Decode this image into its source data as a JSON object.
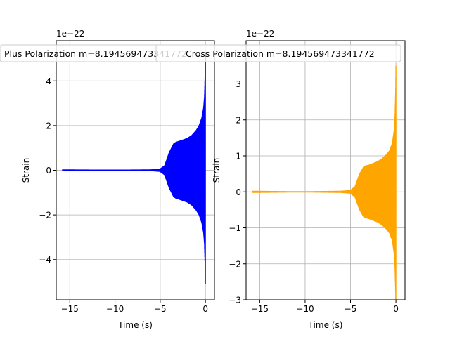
{
  "chart_data": [
    {
      "type": "line",
      "title": "Plus Polarization m=8.194569473341772",
      "xlabel": "Time (s)",
      "ylabel": "Strain",
      "offset_text": "1e−22",
      "xlim": [
        -16.5,
        1.0
      ],
      "ylim": [
        -5.8,
        5.8
      ],
      "xticks": [
        -15,
        -10,
        -5,
        0
      ],
      "xtick_labels": [
        "−15",
        "−10",
        "−5",
        "0"
      ],
      "yticks": [
        -4,
        -2,
        0,
        2,
        4
      ],
      "ytick_labels": [
        "−4",
        "−2",
        "0",
        "2",
        "4"
      ],
      "grid": true,
      "color": "#0000ff",
      "series": [
        {
          "x": [
            -15.8,
            -12,
            -9,
            -6,
            -5,
            -4.5,
            -4,
            -3.5,
            -3.2,
            -3,
            -2.5,
            -2,
            -1.5,
            -1,
            -0.7,
            -0.4,
            -0.2,
            -0.1,
            -0.03,
            0
          ],
          "envelope": [
            0.04,
            0.03,
            0.03,
            0.04,
            0.07,
            0.22,
            0.8,
            1.2,
            1.28,
            1.3,
            1.37,
            1.44,
            1.57,
            1.8,
            2.0,
            2.35,
            2.8,
            3.3,
            4.3,
            5.3
          ]
        }
      ]
    },
    {
      "type": "line",
      "title": "Cross Polarization m=8.194569473341772",
      "xlabel": "Time (s)",
      "ylabel": "Strain",
      "offset_text": "1e−22",
      "xlim": [
        -16.5,
        1.0
      ],
      "ylim": [
        -3.0,
        4.2
      ],
      "xticks": [
        -15,
        -10,
        -5,
        0
      ],
      "xtick_labels": [
        "−15",
        "−10",
        "−5",
        "0"
      ],
      "yticks": [
        -3,
        -2,
        -1,
        0,
        1,
        2,
        3
      ],
      "ytick_labels": [
        "−3",
        "−2",
        "−1",
        "0",
        "1",
        "2",
        "3"
      ],
      "grid": true,
      "color": "#ffa500",
      "series": [
        {
          "x": [
            -15.8,
            -12,
            -9,
            -6,
            -5,
            -4.5,
            -4,
            -3.5,
            -3.2,
            -3,
            -2.5,
            -2,
            -1.5,
            -1,
            -0.7,
            -0.4,
            -0.2,
            -0.1,
            -0.03,
            0
          ],
          "envelope": [
            0.03,
            0.02,
            0.02,
            0.03,
            0.05,
            0.15,
            0.5,
            0.72,
            0.74,
            0.75,
            0.8,
            0.85,
            0.93,
            1.05,
            1.15,
            1.35,
            1.7,
            2.1,
            2.8,
            3.5
          ]
        }
      ]
    }
  ]
}
